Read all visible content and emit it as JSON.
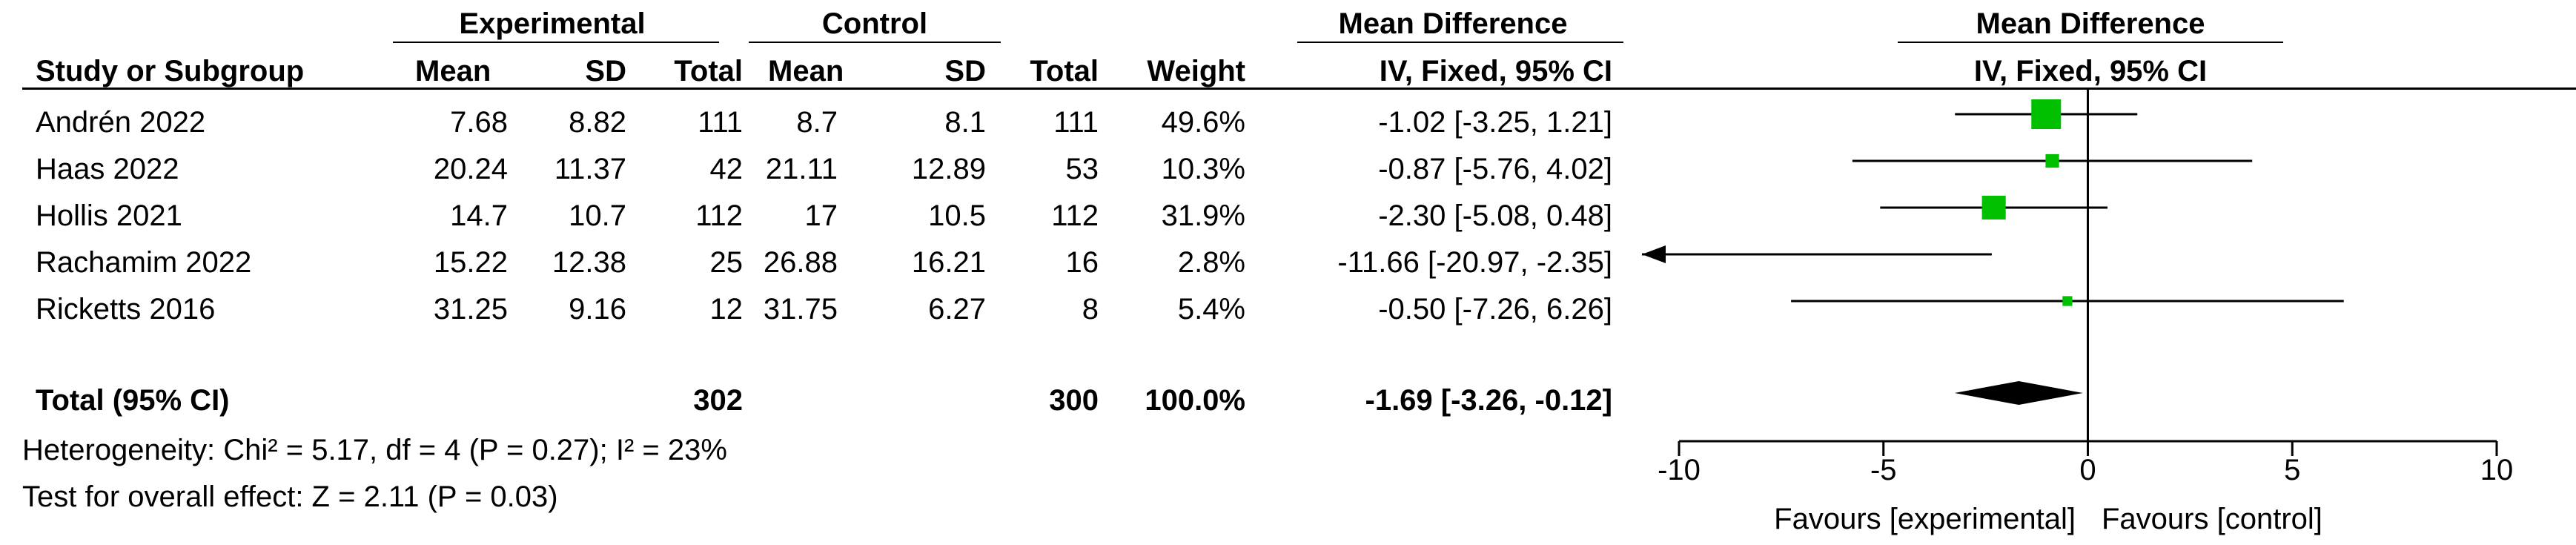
{
  "headers": {
    "experimental": "Experimental",
    "control": "Control",
    "mean_difference": "Mean Difference",
    "plot_title": "Mean Difference",
    "study": "Study or Subgroup",
    "exp_mean": "Mean",
    "exp_sd": "SD",
    "exp_total": "Total",
    "ctl_mean": "Mean",
    "ctl_sd": "SD",
    "ctl_total": "Total",
    "weight": "Weight",
    "method": "IV, Fixed, 95% CI",
    "plot_method": "IV, Fixed, 95% CI"
  },
  "studies": [
    {
      "name": "Andrén 2022",
      "exp_mean": "7.68",
      "exp_sd": "8.82",
      "exp_total": "111",
      "ctl_mean": "8.7",
      "ctl_sd": "8.1",
      "ctl_total": "111",
      "weight": "49.6%",
      "ci_text": "-1.02 [-3.25, 1.21]"
    },
    {
      "name": "Haas 2022",
      "exp_mean": "20.24",
      "exp_sd": "11.37",
      "exp_total": "42",
      "ctl_mean": "21.11",
      "ctl_sd": "12.89",
      "ctl_total": "53",
      "weight": "10.3%",
      "ci_text": "-0.87 [-5.76, 4.02]"
    },
    {
      "name": "Hollis 2021",
      "exp_mean": "14.7",
      "exp_sd": "10.7",
      "exp_total": "112",
      "ctl_mean": "17",
      "ctl_sd": "10.5",
      "ctl_total": "112",
      "weight": "31.9%",
      "ci_text": "-2.30 [-5.08, 0.48]"
    },
    {
      "name": "Rachamim 2022",
      "exp_mean": "15.22",
      "exp_sd": "12.38",
      "exp_total": "25",
      "ctl_mean": "26.88",
      "ctl_sd": "16.21",
      "ctl_total": "16",
      "weight": "2.8%",
      "ci_text": "-11.66 [-20.97, -2.35]"
    },
    {
      "name": "Ricketts 2016",
      "exp_mean": "31.25",
      "exp_sd": "9.16",
      "exp_total": "12",
      "ctl_mean": "31.75",
      "ctl_sd": "6.27",
      "ctl_total": "8",
      "weight": "5.4%",
      "ci_text": "-0.50 [-7.26, 6.26]"
    }
  ],
  "total": {
    "label": "Total (95% CI)",
    "exp_total": "302",
    "ctl_total": "300",
    "weight": "100.0%",
    "ci_text": "-1.69 [-3.26, -0.12]"
  },
  "heterogeneity": "Heterogeneity: Chi² = 5.17, df = 4 (P = 0.27); I² = 23%",
  "overall_effect": "Test for overall effect: Z = 2.11 (P = 0.03)",
  "favours_left": "Favours [experimental]",
  "favours_right": "Favours [control]",
  "colors": {
    "marker": "#00c000",
    "diamond": "#000000"
  },
  "chart_data": {
    "type": "forest",
    "xlim": [
      -10,
      10
    ],
    "ticks": [
      -10,
      -5,
      0,
      5,
      10
    ],
    "tick_labels": [
      "-10",
      "-5",
      "0",
      "5",
      "10"
    ],
    "series": [
      {
        "name": "Andrén 2022",
        "estimate": -1.02,
        "lower": -3.25,
        "upper": 1.21,
        "weight": 49.6
      },
      {
        "name": "Haas 2022",
        "estimate": -0.87,
        "lower": -5.76,
        "upper": 4.02,
        "weight": 10.3
      },
      {
        "name": "Hollis 2021",
        "estimate": -2.3,
        "lower": -5.08,
        "upper": 0.48,
        "weight": 31.9
      },
      {
        "name": "Rachamim 2022",
        "estimate": -11.66,
        "lower": -20.97,
        "upper": -2.35,
        "weight": 2.8
      },
      {
        "name": "Ricketts 2016",
        "estimate": -0.5,
        "lower": -7.26,
        "upper": 6.26,
        "weight": 5.4
      }
    ],
    "pooled": {
      "estimate": -1.69,
      "lower": -3.26,
      "upper": -0.12
    }
  }
}
